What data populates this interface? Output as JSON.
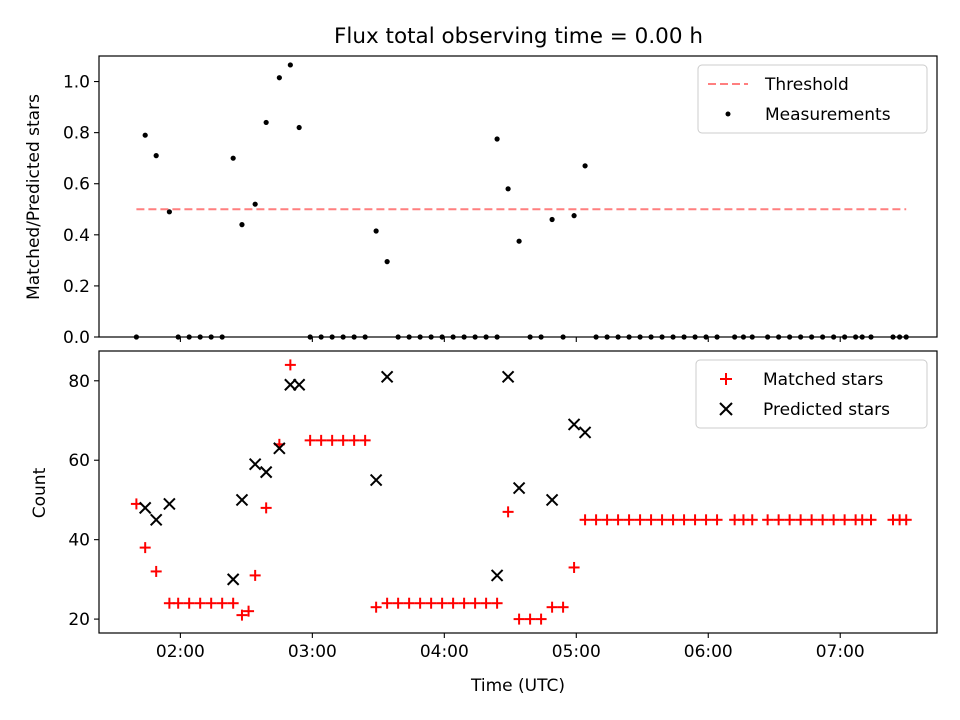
{
  "chart_data": [
    {
      "type": "scatter",
      "title": "Flux total observing time = 0.00 h",
      "ylabel": "Matched/Predicted stars",
      "xlabel": "",
      "xlim": [
        "01:23",
        "07:44"
      ],
      "ylim": [
        0,
        1.1
      ],
      "x_ticks": [
        "02:00",
        "03:00",
        "04:00",
        "05:00",
        "06:00",
        "07:00"
      ],
      "y_ticks": [
        "0.0",
        "0.2",
        "0.4",
        "0.6",
        "0.8",
        "1.0"
      ],
      "grid": false,
      "legend": "top-right",
      "threshold": {
        "name": "Threshold",
        "value": 0.5,
        "x_start": "01:40",
        "x_end": "07:30",
        "color": "#ff7f7f"
      },
      "series": [
        {
          "name": "Measurements",
          "color": "#000000",
          "marker": "dot",
          "points": [
            [
              "01:40",
              0.0
            ],
            [
              "01:44",
              0.79
            ],
            [
              "01:49",
              0.71
            ],
            [
              "01:55",
              0.49
            ],
            [
              "01:59",
              0.0
            ],
            [
              "02:04",
              0.0
            ],
            [
              "02:09",
              0.0
            ],
            [
              "02:14",
              0.0
            ],
            [
              "02:19",
              0.0
            ],
            [
              "02:24",
              0.7
            ],
            [
              "02:28",
              0.44
            ],
            [
              "02:34",
              0.52
            ],
            [
              "02:39",
              0.84
            ],
            [
              "02:45",
              1.015
            ],
            [
              "02:50",
              1.065
            ],
            [
              "02:54",
              0.82
            ],
            [
              "02:59",
              0.0
            ],
            [
              "03:04",
              0.0
            ],
            [
              "03:09",
              0.0
            ],
            [
              "03:14",
              0.0
            ],
            [
              "03:19",
              0.0
            ],
            [
              "03:24",
              0.0
            ],
            [
              "03:29",
              0.415
            ],
            [
              "03:34",
              0.295
            ],
            [
              "03:39",
              0.0
            ],
            [
              "03:44",
              0.0
            ],
            [
              "03:49",
              0.0
            ],
            [
              "03:54",
              0.0
            ],
            [
              "03:59",
              0.0
            ],
            [
              "04:04",
              0.0
            ],
            [
              "04:09",
              0.0
            ],
            [
              "04:14",
              0.0
            ],
            [
              "04:19",
              0.0
            ],
            [
              "04:24",
              0.0
            ],
            [
              "04:24",
              0.775
            ],
            [
              "04:29",
              0.58
            ],
            [
              "04:34",
              0.375
            ],
            [
              "04:39",
              0.0
            ],
            [
              "04:44",
              0.0
            ],
            [
              "04:49",
              0.46
            ],
            [
              "04:54",
              0.0
            ],
            [
              "04:59",
              0.475
            ],
            [
              "05:04",
              0.67
            ],
            [
              "05:09",
              0.0
            ],
            [
              "05:14",
              0.0
            ],
            [
              "05:19",
              0.0
            ],
            [
              "05:24",
              0.0
            ],
            [
              "05:29",
              0.0
            ],
            [
              "05:34",
              0.0
            ],
            [
              "05:39",
              0.0
            ],
            [
              "05:44",
              0.0
            ],
            [
              "05:49",
              0.0
            ],
            [
              "05:54",
              0.0
            ],
            [
              "05:59",
              0.0
            ],
            [
              "06:04",
              0.0
            ],
            [
              "06:12",
              0.0
            ],
            [
              "06:16",
              0.0
            ],
            [
              "06:20",
              0.0
            ],
            [
              "06:27",
              0.0
            ],
            [
              "06:32",
              0.0
            ],
            [
              "06:37",
              0.0
            ],
            [
              "06:42",
              0.0
            ],
            [
              "06:47",
              0.0
            ],
            [
              "06:52",
              0.0
            ],
            [
              "06:57",
              0.0
            ],
            [
              "07:02",
              0.0
            ],
            [
              "07:07",
              0.0
            ],
            [
              "07:10",
              0.0
            ],
            [
              "07:14",
              0.0
            ],
            [
              "07:24",
              0.0
            ],
            [
              "07:27",
              0.0
            ],
            [
              "07:30",
              0.0
            ]
          ]
        }
      ]
    },
    {
      "type": "scatter",
      "title": "",
      "ylabel": "Count",
      "xlabel": "Time (UTC)",
      "xlim": [
        "01:23",
        "07:44"
      ],
      "ylim": [
        16.5,
        87.5
      ],
      "x_ticks": [
        "02:00",
        "03:00",
        "04:00",
        "05:00",
        "06:00",
        "07:00"
      ],
      "y_ticks": [
        "20",
        "40",
        "60",
        "80"
      ],
      "grid": false,
      "legend": "top-right",
      "series": [
        {
          "name": "Matched stars",
          "color": "#ff0000",
          "marker": "plus",
          "points": [
            [
              "01:40",
              49
            ],
            [
              "01:44",
              38
            ],
            [
              "01:49",
              32
            ],
            [
              "01:55",
              24
            ],
            [
              "01:59",
              24
            ],
            [
              "02:04",
              24
            ],
            [
              "02:09",
              24
            ],
            [
              "02:14",
              24
            ],
            [
              "02:19",
              24
            ],
            [
              "02:24",
              24
            ],
            [
              "02:28",
              21
            ],
            [
              "02:31",
              22
            ],
            [
              "02:34",
              31
            ],
            [
              "02:39",
              48
            ],
            [
              "02:45",
              64
            ],
            [
              "02:50",
              84
            ],
            [
              "02:59",
              65
            ],
            [
              "03:04",
              65
            ],
            [
              "03:09",
              65
            ],
            [
              "03:14",
              65
            ],
            [
              "03:19",
              65
            ],
            [
              "03:24",
              65
            ],
            [
              "03:29",
              23
            ],
            [
              "03:34",
              24
            ],
            [
              "03:39",
              24
            ],
            [
              "03:44",
              24
            ],
            [
              "03:49",
              24
            ],
            [
              "03:54",
              24
            ],
            [
              "03:59",
              24
            ],
            [
              "04:04",
              24
            ],
            [
              "04:09",
              24
            ],
            [
              "04:14",
              24
            ],
            [
              "04:19",
              24
            ],
            [
              "04:24",
              24
            ],
            [
              "04:29",
              47
            ],
            [
              "04:34",
              20
            ],
            [
              "04:39",
              20
            ],
            [
              "04:44",
              20
            ],
            [
              "04:49",
              23
            ],
            [
              "04:54",
              23
            ],
            [
              "04:59",
              33
            ],
            [
              "05:04",
              45
            ],
            [
              "05:09",
              45
            ],
            [
              "05:14",
              45
            ],
            [
              "05:19",
              45
            ],
            [
              "05:24",
              45
            ],
            [
              "05:29",
              45
            ],
            [
              "05:34",
              45
            ],
            [
              "05:39",
              45
            ],
            [
              "05:44",
              45
            ],
            [
              "05:49",
              45
            ],
            [
              "05:54",
              45
            ],
            [
              "05:59",
              45
            ],
            [
              "06:04",
              45
            ],
            [
              "06:12",
              45
            ],
            [
              "06:16",
              45
            ],
            [
              "06:20",
              45
            ],
            [
              "06:27",
              45
            ],
            [
              "06:32",
              45
            ],
            [
              "06:37",
              45
            ],
            [
              "06:42",
              45
            ],
            [
              "06:47",
              45
            ],
            [
              "06:52",
              45
            ],
            [
              "06:57",
              45
            ],
            [
              "07:02",
              45
            ],
            [
              "07:07",
              45
            ],
            [
              "07:10",
              45
            ],
            [
              "07:14",
              45
            ],
            [
              "07:24",
              45
            ],
            [
              "07:27",
              45
            ],
            [
              "07:30",
              45
            ]
          ]
        },
        {
          "name": "Predicted stars",
          "color": "#000000",
          "marker": "x",
          "points": [
            [
              "01:44",
              48
            ],
            [
              "01:49",
              45
            ],
            [
              "01:55",
              49
            ],
            [
              "02:24",
              30
            ],
            [
              "02:28",
              50
            ],
            [
              "02:34",
              59
            ],
            [
              "02:39",
              57
            ],
            [
              "02:45",
              63
            ],
            [
              "02:50",
              79
            ],
            [
              "02:54",
              79
            ],
            [
              "03:29",
              55
            ],
            [
              "03:34",
              81
            ],
            [
              "04:24",
              31
            ],
            [
              "04:29",
              81
            ],
            [
              "04:34",
              53
            ],
            [
              "04:49",
              50
            ],
            [
              "04:59",
              69
            ],
            [
              "05:04",
              67
            ]
          ]
        }
      ]
    }
  ]
}
